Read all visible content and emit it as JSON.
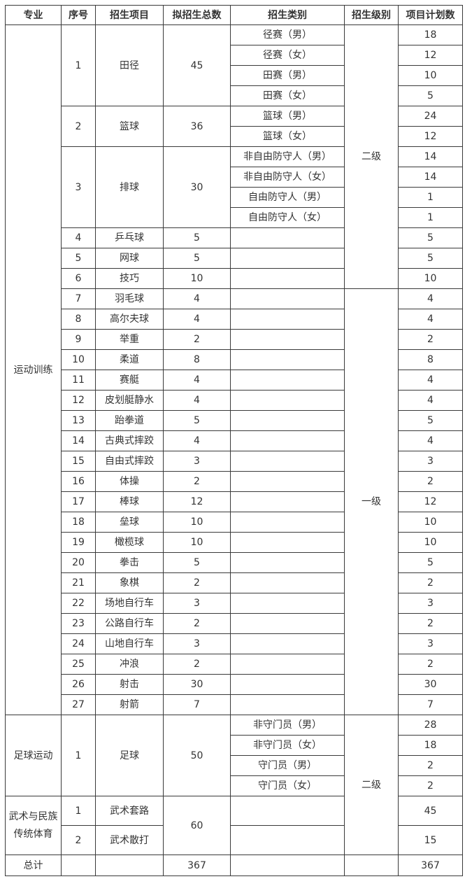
{
  "headers": [
    "专业",
    "序号",
    "招生项目",
    "拟招生总数",
    "招生类别",
    "招生级别",
    "项目计划数"
  ],
  "majors": [
    {
      "name": "运动训练",
      "projects": [
        {
          "no": "1",
          "name": "田径",
          "total": "45",
          "level": "二级",
          "categories": [
            {
              "name": "径赛（男）",
              "plan": "18"
            },
            {
              "name": "径赛（女）",
              "plan": "12"
            },
            {
              "name": "田赛（男）",
              "plan": "10"
            },
            {
              "name": "田赛（女）",
              "plan": "5"
            }
          ]
        },
        {
          "no": "2",
          "name": "篮球",
          "total": "36",
          "level": "二级",
          "categories": [
            {
              "name": "篮球（男）",
              "plan": "24"
            },
            {
              "name": "篮球（女）",
              "plan": "12"
            }
          ]
        },
        {
          "no": "3",
          "name": "排球",
          "total": "30",
          "level": "二级",
          "categories": [
            {
              "name": "非自由防守人（男）",
              "plan": "14"
            },
            {
              "name": "非自由防守人（女）",
              "plan": "14"
            },
            {
              "name": "自由防守人（男）",
              "plan": "1"
            },
            {
              "name": "自由防守人（女）",
              "plan": "1"
            }
          ]
        },
        {
          "no": "4",
          "name": "乒乓球",
          "total": "5",
          "level": "二级",
          "categories": [
            {
              "name": "",
              "plan": "5"
            }
          ]
        },
        {
          "no": "5",
          "name": "网球",
          "total": "5",
          "level": "二级",
          "categories": [
            {
              "name": "",
              "plan": "5"
            }
          ]
        },
        {
          "no": "6",
          "name": "技巧",
          "total": "10",
          "level": "二级",
          "categories": [
            {
              "name": "",
              "plan": "10"
            }
          ]
        },
        {
          "no": "7",
          "name": "羽毛球",
          "total": "4",
          "level": "一级",
          "categories": [
            {
              "name": "",
              "plan": "4"
            }
          ]
        },
        {
          "no": "8",
          "name": "高尔夫球",
          "total": "4",
          "level": "一级",
          "categories": [
            {
              "name": "",
              "plan": "4"
            }
          ]
        },
        {
          "no": "9",
          "name": "举重",
          "total": "2",
          "level": "一级",
          "categories": [
            {
              "name": "",
              "plan": "2"
            }
          ]
        },
        {
          "no": "10",
          "name": "柔道",
          "total": "8",
          "level": "一级",
          "categories": [
            {
              "name": "",
              "plan": "8"
            }
          ]
        },
        {
          "no": "11",
          "name": "赛艇",
          "total": "4",
          "level": "一级",
          "categories": [
            {
              "name": "",
              "plan": "4"
            }
          ]
        },
        {
          "no": "12",
          "name": "皮划艇静水",
          "total": "4",
          "level": "一级",
          "categories": [
            {
              "name": "",
              "plan": "4"
            }
          ]
        },
        {
          "no": "13",
          "name": "跆拳道",
          "total": "5",
          "level": "一级",
          "categories": [
            {
              "name": "",
              "plan": "5"
            }
          ]
        },
        {
          "no": "14",
          "name": "古典式摔跤",
          "total": "4",
          "level": "一级",
          "categories": [
            {
              "name": "",
              "plan": "4"
            }
          ]
        },
        {
          "no": "15",
          "name": "自由式摔跤",
          "total": "3",
          "level": "一级",
          "categories": [
            {
              "name": "",
              "plan": "3"
            }
          ]
        },
        {
          "no": "16",
          "name": "体操",
          "total": "2",
          "level": "一级",
          "categories": [
            {
              "name": "",
              "plan": "2"
            }
          ]
        },
        {
          "no": "17",
          "name": "棒球",
          "total": "12",
          "level": "一级",
          "categories": [
            {
              "name": "",
              "plan": "12"
            }
          ]
        },
        {
          "no": "18",
          "name": "垒球",
          "total": "10",
          "level": "一级",
          "categories": [
            {
              "name": "",
              "plan": "10"
            }
          ]
        },
        {
          "no": "19",
          "name": "橄榄球",
          "total": "10",
          "level": "一级",
          "categories": [
            {
              "name": "",
              "plan": "10"
            }
          ]
        },
        {
          "no": "20",
          "name": "拳击",
          "total": "5",
          "level": "一级",
          "categories": [
            {
              "name": "",
              "plan": "5"
            }
          ]
        },
        {
          "no": "21",
          "name": "象棋",
          "total": "2",
          "level": "一级",
          "categories": [
            {
              "name": "",
              "plan": "2"
            }
          ]
        },
        {
          "no": "22",
          "name": "场地自行车",
          "total": "3",
          "level": "一级",
          "categories": [
            {
              "name": "",
              "plan": "3"
            }
          ]
        },
        {
          "no": "23",
          "name": "公路自行车",
          "total": "2",
          "level": "一级",
          "categories": [
            {
              "name": "",
              "plan": "2"
            }
          ]
        },
        {
          "no": "24",
          "name": "山地自行车",
          "total": "3",
          "level": "一级",
          "categories": [
            {
              "name": "",
              "plan": "3"
            }
          ]
        },
        {
          "no": "25",
          "name": "冲浪",
          "total": "2",
          "level": "一级",
          "categories": [
            {
              "name": "",
              "plan": "2"
            }
          ]
        },
        {
          "no": "26",
          "name": "射击",
          "total": "30",
          "level": "一级",
          "categories": [
            {
              "name": "",
              "plan": "30"
            }
          ]
        },
        {
          "no": "27",
          "name": "射箭",
          "total": "7",
          "level": "一级",
          "categories": [
            {
              "name": "",
              "plan": "7"
            }
          ]
        }
      ]
    },
    {
      "name": "足球运动",
      "projects": [
        {
          "no": "1",
          "name": "足球",
          "total": "50",
          "level": "二级",
          "categories": [
            {
              "name": "非守门员（男）",
              "plan": "28"
            },
            {
              "name": "非守门员（女）",
              "plan": "18"
            },
            {
              "name": "守门员（男）",
              "plan": "2"
            },
            {
              "name": "守门员（女）",
              "plan": "2"
            }
          ]
        }
      ]
    },
    {
      "name": "武术与民族传统体育",
      "shared_total": "60",
      "projects": [
        {
          "no": "1",
          "name": "武术套路",
          "level": "二级",
          "categories": [
            {
              "name": "",
              "plan": "45"
            }
          ]
        },
        {
          "no": "2",
          "name": "武术散打",
          "level": "二级",
          "categories": [
            {
              "name": "",
              "plan": "15"
            }
          ]
        }
      ]
    }
  ],
  "summary": {
    "label": "总计",
    "total": "367",
    "plan": "367"
  }
}
